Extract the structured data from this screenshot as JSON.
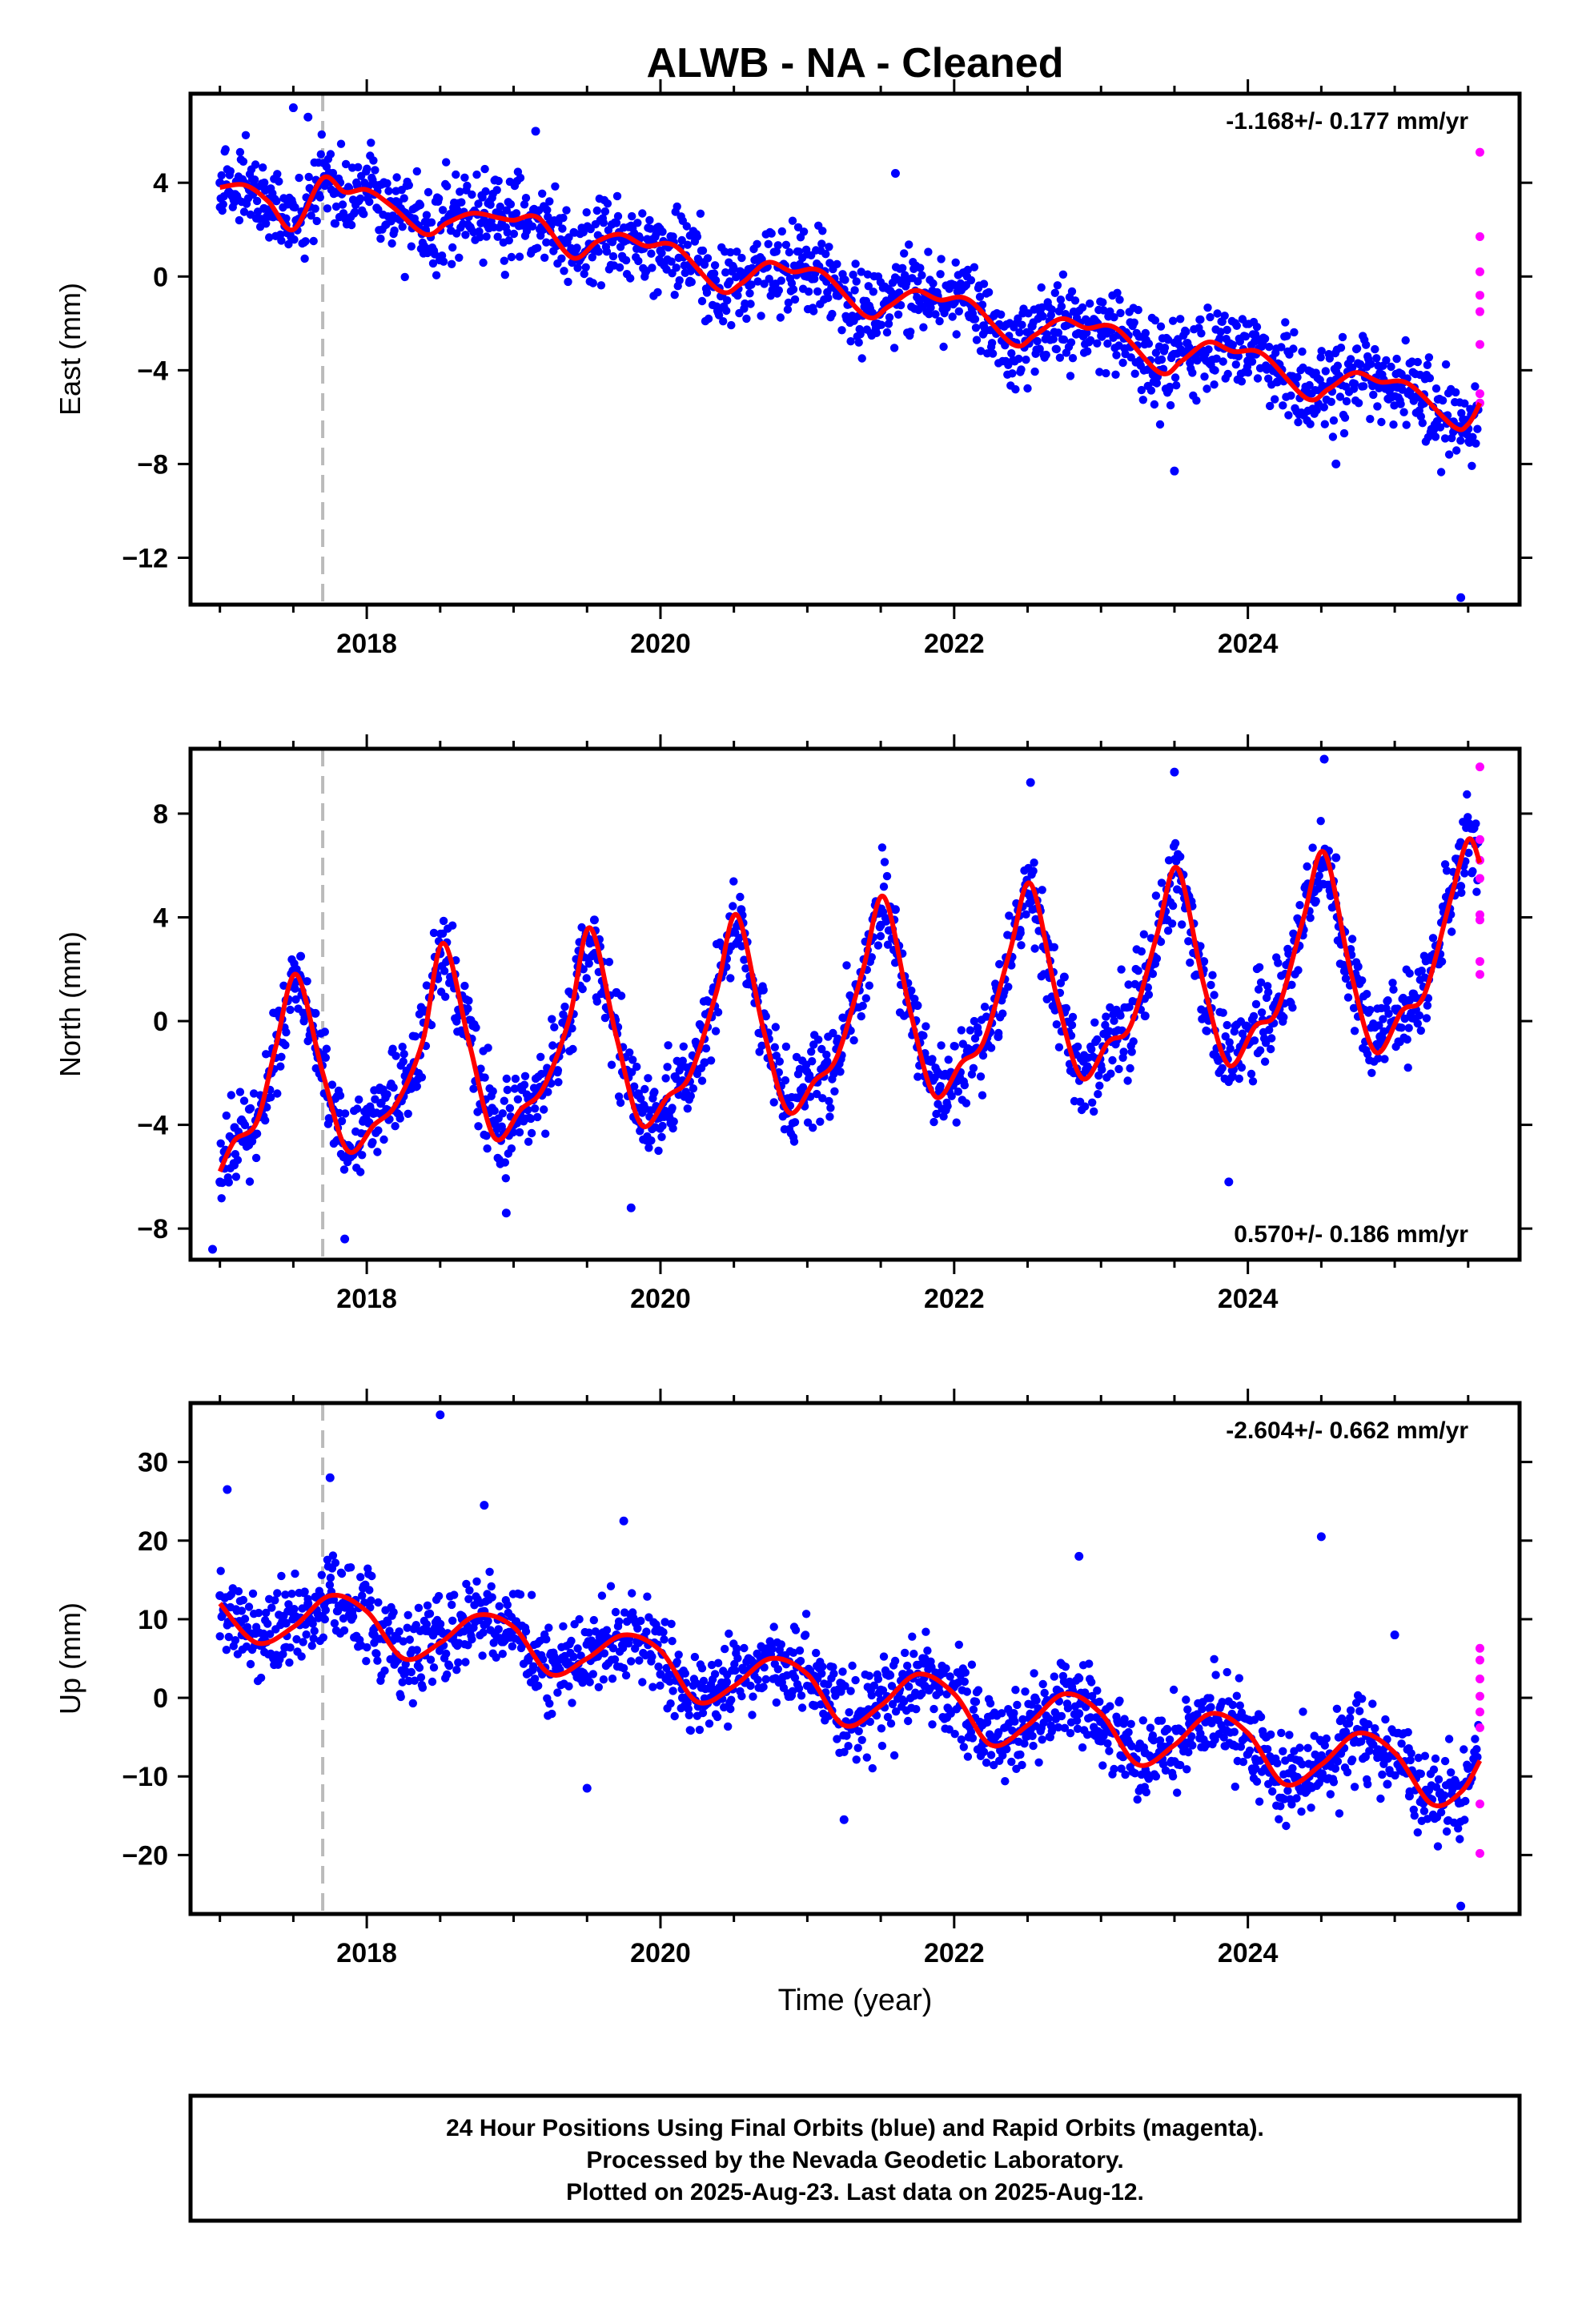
{
  "title": "ALWB  - NA - Cleaned",
  "xlabel": "Time (year)",
  "colors": {
    "final": "#0000ff",
    "rapid": "#ff00ff",
    "model": "#ff0000",
    "event_line": "#bbbbbb"
  },
  "footer": {
    "lines": [
      "24 Hour Positions Using Final Orbits (blue) and Rapid Orbits (magenta).",
      "Processed by the Nevada Geodetic Laboratory.",
      "Plotted on 2025-Aug-23. Last data on 2025-Aug-12."
    ]
  },
  "chart_data": [
    {
      "type": "scatter",
      "component": "east",
      "ylabel": "East (mm)",
      "rate_label": "-1.168+/- 0.177 mm/yr",
      "rate_position": "top-right",
      "xlim": [
        2016.8,
        2025.85
      ],
      "ylim": [
        -14.0,
        7.8
      ],
      "xticks": [
        2018,
        2020,
        2022,
        2024
      ],
      "xtick_labels": [
        "2018",
        "2020",
        "2022",
        "2024"
      ],
      "yticks": [
        -12,
        -8,
        -4,
        0,
        4
      ],
      "ytick_labels": [
        "−12",
        "−8",
        "−4",
        "0",
        "4"
      ],
      "event_line_x": 2017.7,
      "series": [
        {
          "role": "model",
          "x": [
            2017.0,
            2017.17,
            2017.33,
            2017.5,
            2017.7,
            2017.85,
            2018.0,
            2018.17,
            2018.4,
            2018.55,
            2018.72,
            2018.9,
            2019.0,
            2019.17,
            2019.4,
            2019.57,
            2019.73,
            2019.9,
            2020.1,
            2020.4,
            2020.55,
            2020.73,
            2020.9,
            2021.1,
            2021.4,
            2021.55,
            2021.73,
            2021.9,
            2022.1,
            2022.4,
            2022.55,
            2022.73,
            2022.9,
            2023.1,
            2023.4,
            2023.55,
            2023.73,
            2023.9,
            2024.1,
            2024.4,
            2024.55,
            2024.73,
            2024.9,
            2025.1,
            2025.4,
            2025.5,
            2025.58
          ],
          "y": [
            3.8,
            3.9,
            3.2,
            2.0,
            4.2,
            3.6,
            3.7,
            3.0,
            1.8,
            2.3,
            2.7,
            2.5,
            2.4,
            2.5,
            0.8,
            1.5,
            1.8,
            1.3,
            1.3,
            -0.6,
            -0.3,
            0.6,
            0.2,
            0.2,
            -1.7,
            -1.3,
            -0.6,
            -1.0,
            -1.0,
            -2.9,
            -2.5,
            -1.8,
            -2.2,
            -2.2,
            -4.1,
            -3.6,
            -2.8,
            -3.2,
            -3.3,
            -5.2,
            -4.8,
            -4.1,
            -4.5,
            -4.6,
            -6.4,
            -6.3,
            -5.4
          ]
        },
        {
          "role": "final",
          "x": [
            2017.0,
            2017.1,
            2017.2,
            2017.3,
            2017.45,
            2017.55,
            2017.65,
            2017.8,
            2018.0,
            2018.2,
            2018.4,
            2018.6,
            2018.8,
            2019.0,
            2019.2,
            2019.4,
            2019.6,
            2019.8,
            2020.0,
            2020.2,
            2020.4,
            2020.6,
            2020.8,
            2021.0,
            2021.2,
            2021.4,
            2021.6,
            2021.8,
            2022.0,
            2022.2,
            2022.4,
            2022.6,
            2022.8,
            2023.0,
            2023.2,
            2023.4,
            2023.6,
            2023.8,
            2024.0,
            2024.2,
            2024.4,
            2024.6,
            2024.8,
            2025.0,
            2025.2,
            2025.4,
            2025.5,
            2017.5,
            2017.6,
            2019.15,
            2021.6,
            2023.5,
            2024.6,
            2025.45
          ],
          "y": [
            4.0,
            3.5,
            3.7,
            2.9,
            2.2,
            2.5,
            3.5,
            4.0,
            3.6,
            3.2,
            2.0,
            2.6,
            2.7,
            2.3,
            2.1,
            1.0,
            1.6,
            1.7,
            1.1,
            -0.2,
            -0.5,
            0.3,
            0.4,
            0.0,
            -0.8,
            -1.6,
            -1.0,
            -0.7,
            -1.1,
            -2.1,
            -2.8,
            -2.3,
            -2.0,
            -2.3,
            -3.0,
            -4.0,
            -3.1,
            -3.0,
            -3.6,
            -4.5,
            -5.1,
            -4.4,
            -4.3,
            -4.6,
            -5.4,
            -6.2,
            -6.5,
            7.2,
            6.8,
            6.2,
            4.4,
            -8.3,
            -8.0,
            -13.7
          ]
        },
        {
          "role": "rapid",
          "x": [
            2025.58,
            2025.58,
            2025.58,
            2025.58,
            2025.58,
            2025.58,
            2025.58,
            2025.58
          ],
          "y": [
            5.3,
            1.7,
            0.2,
            -0.8,
            -1.5,
            -2.9,
            -5.0,
            -5.4
          ]
        }
      ]
    },
    {
      "type": "scatter",
      "component": "north",
      "ylabel": "North (mm)",
      "rate_label": "0.570+/- 0.186 mm/yr",
      "rate_position": "bottom-right",
      "xlim": [
        2016.8,
        2025.85
      ],
      "ylim": [
        -9.2,
        10.5
      ],
      "xticks": [
        2018,
        2020,
        2022,
        2024
      ],
      "xtick_labels": [
        "2018",
        "2020",
        "2022",
        "2024"
      ],
      "yticks": [
        -8,
        -4,
        0,
        4,
        8
      ],
      "ytick_labels": [
        "−8",
        "−4",
        "0",
        "4",
        "8"
      ],
      "event_line_x": 2017.7,
      "series": [
        {
          "role": "model",
          "x": [
            2017.0,
            2017.1,
            2017.25,
            2017.38,
            2017.52,
            2017.7,
            2017.87,
            2018.05,
            2018.2,
            2018.38,
            2018.52,
            2018.7,
            2018.87,
            2019.05,
            2019.2,
            2019.38,
            2019.52,
            2019.7,
            2019.87,
            2020.05,
            2020.2,
            2020.38,
            2020.52,
            2020.7,
            2020.87,
            2021.05,
            2021.2,
            2021.38,
            2021.52,
            2021.7,
            2021.87,
            2022.05,
            2022.2,
            2022.38,
            2022.52,
            2022.7,
            2022.87,
            2023.05,
            2023.2,
            2023.38,
            2023.52,
            2023.7,
            2023.87,
            2024.05,
            2024.2,
            2024.38,
            2024.52,
            2024.7,
            2024.87,
            2025.05,
            2025.2,
            2025.38,
            2025.5,
            2025.58
          ],
          "y": [
            -5.8,
            -4.6,
            -3.9,
            -1.0,
            1.8,
            -2.0,
            -5.0,
            -4.0,
            -3.2,
            -0.8,
            3.0,
            -0.9,
            -4.5,
            -3.4,
            -2.6,
            0.1,
            3.6,
            -0.6,
            -4.0,
            -2.9,
            -2.1,
            1.1,
            4.1,
            -0.3,
            -3.5,
            -2.3,
            -1.4,
            2.0,
            4.8,
            0.4,
            -2.9,
            -1.6,
            -0.8,
            2.7,
            5.3,
            0.9,
            -2.2,
            -0.8,
            -0.2,
            3.3,
            5.9,
            1.4,
            -1.7,
            -0.2,
            0.4,
            4.0,
            6.5,
            1.9,
            -1.2,
            0.4,
            1.0,
            4.7,
            7.0,
            6.1
          ]
        },
        {
          "role": "final",
          "x": [
            2017.0,
            2017.1,
            2017.2,
            2017.35,
            2017.45,
            2017.55,
            2017.65,
            2017.8,
            2017.95,
            2018.1,
            2018.25,
            2018.4,
            2018.5,
            2018.6,
            2018.8,
            2018.95,
            2019.1,
            2019.3,
            2019.45,
            2019.55,
            2019.7,
            2019.85,
            2020.0,
            2020.15,
            2020.3,
            2020.45,
            2020.55,
            2020.7,
            2020.85,
            2021.0,
            2021.2,
            2021.35,
            2021.5,
            2021.6,
            2021.75,
            2021.9,
            2022.1,
            2022.3,
            2022.45,
            2022.55,
            2022.75,
            2022.9,
            2023.1,
            2023.3,
            2023.45,
            2023.55,
            2023.7,
            2023.85,
            2024.0,
            2024.2,
            2024.35,
            2024.5,
            2024.6,
            2024.75,
            2024.9,
            2025.1,
            2025.3,
            2025.45,
            2025.55,
            2016.95,
            2017.85,
            2018.95,
            2019.8,
            2022.52,
            2023.5,
            2024.52,
            2023.87
          ],
          "y": [
            -6.2,
            -4.1,
            -3.4,
            -2.0,
            0.8,
            2.5,
            0.3,
            -4.6,
            -4.8,
            -3.6,
            -2.9,
            0.4,
            2.6,
            1.8,
            -3.4,
            -4.3,
            -3.0,
            -1.9,
            2.1,
            3.9,
            1.1,
            -2.8,
            -3.7,
            -2.3,
            -1.6,
            2.4,
            4.3,
            1.2,
            -3.2,
            -2.9,
            -1.8,
            1.4,
            3.7,
            4.3,
            0.6,
            -2.6,
            -1.3,
            -0.6,
            3.4,
            5.0,
            1.7,
            -1.9,
            -0.7,
            0.2,
            3.9,
            5.6,
            2.3,
            -1.3,
            -0.9,
            0.8,
            2.9,
            5.9,
            6.3,
            2.1,
            -0.6,
            0.8,
            2.2,
            5.2,
            6.8,
            -8.8,
            -8.4,
            -7.4,
            -7.2,
            9.2,
            9.6,
            10.1,
            -6.2
          ]
        },
        {
          "role": "rapid",
          "x": [
            2025.58,
            2025.58,
            2025.58,
            2025.58,
            2025.58,
            2025.58,
            2025.58,
            2025.58
          ],
          "y": [
            9.8,
            7.0,
            6.2,
            5.5,
            4.1,
            3.9,
            2.3,
            1.8
          ]
        }
      ]
    },
    {
      "type": "scatter",
      "component": "up",
      "ylabel": "Up (mm)",
      "rate_label": "-2.604+/- 0.662 mm/yr",
      "rate_position": "top-right",
      "xlim": [
        2016.8,
        2025.85
      ],
      "ylim": [
        -27.5,
        37.5
      ],
      "xticks": [
        2018,
        2020,
        2022,
        2024
      ],
      "xtick_labels": [
        "2018",
        "2020",
        "2022",
        "2024"
      ],
      "yticks": [
        -20,
        -10,
        0,
        10,
        20,
        30
      ],
      "ytick_labels": [
        "−20",
        "−10",
        "0",
        "10",
        "20",
        "30"
      ],
      "event_line_x": 2017.7,
      "series": [
        {
          "role": "model",
          "x": [
            2017.0,
            2017.25,
            2017.5,
            2017.75,
            2018.0,
            2018.25,
            2018.5,
            2018.75,
            2019.0,
            2019.25,
            2019.5,
            2019.75,
            2020.0,
            2020.25,
            2020.5,
            2020.75,
            2021.0,
            2021.25,
            2021.5,
            2021.75,
            2022.0,
            2022.25,
            2022.5,
            2022.75,
            2023.0,
            2023.25,
            2023.5,
            2023.75,
            2024.0,
            2024.25,
            2024.5,
            2024.75,
            2025.0,
            2025.25,
            2025.45,
            2025.58
          ],
          "y": [
            12.0,
            7.0,
            9.0,
            13.0,
            11.0,
            5.0,
            7.0,
            10.5,
            9.0,
            3.0,
            5.0,
            8.0,
            6.0,
            -0.5,
            1.5,
            5.0,
            3.0,
            -3.5,
            -1.0,
            3.0,
            0.5,
            -6.0,
            -3.5,
            0.5,
            -2.0,
            -8.5,
            -6.0,
            -2.0,
            -4.5,
            -11.0,
            -8.5,
            -4.5,
            -7.0,
            -13.5,
            -12.0,
            -8.0
          ]
        },
        {
          "role": "final",
          "x": [
            2017.0,
            2017.15,
            2017.3,
            2017.45,
            2017.6,
            2017.75,
            2017.9,
            2018.05,
            2018.2,
            2018.35,
            2018.5,
            2018.65,
            2018.8,
            2018.95,
            2019.1,
            2019.25,
            2019.4,
            2019.55,
            2019.7,
            2019.85,
            2020.0,
            2020.15,
            2020.3,
            2020.45,
            2020.6,
            2020.75,
            2020.9,
            2021.05,
            2021.2,
            2021.35,
            2021.5,
            2021.65,
            2021.8,
            2021.95,
            2022.1,
            2022.25,
            2022.4,
            2022.55,
            2022.7,
            2022.85,
            2023.0,
            2023.15,
            2023.3,
            2023.45,
            2023.6,
            2023.75,
            2023.9,
            2024.05,
            2024.2,
            2024.35,
            2024.5,
            2024.65,
            2024.8,
            2024.95,
            2025.1,
            2025.25,
            2025.4,
            2025.5,
            2018.5,
            2017.05,
            2017.75,
            2018.8,
            2019.75,
            2022.85,
            2024.5,
            2025.0,
            2025.45,
            2019.5,
            2021.25
          ],
          "y": [
            13.0,
            8.0,
            7.5,
            9.5,
            12.0,
            12.5,
            11.0,
            8.0,
            5.5,
            5.0,
            7.0,
            10.0,
            11.0,
            8.0,
            5.0,
            3.0,
            4.0,
            6.0,
            8.0,
            7.0,
            3.0,
            0.0,
            -1.0,
            2.0,
            5.0,
            5.5,
            3.0,
            -1.0,
            -3.0,
            -2.0,
            1.0,
            3.0,
            1.5,
            -2.5,
            -5.0,
            -5.5,
            -2.5,
            0.0,
            1.0,
            -2.0,
            -5.5,
            -7.5,
            -7.0,
            -4.0,
            -2.5,
            -3.0,
            -6.0,
            -9.0,
            -10.5,
            -8.0,
            -5.5,
            -5.0,
            -7.5,
            -11.0,
            -12.5,
            -13.0,
            -11.0,
            -9.0,
            36.0,
            26.5,
            28.0,
            24.5,
            22.5,
            18.0,
            20.5,
            8.0,
            -26.5,
            -11.5,
            -15.5
          ]
        },
        {
          "role": "rapid",
          "x": [
            2025.58,
            2025.58,
            2025.58,
            2025.58,
            2025.58,
            2025.58,
            2025.58,
            2025.58
          ],
          "y": [
            6.3,
            4.8,
            2.4,
            0.2,
            -1.8,
            -3.8,
            -13.5,
            -19.8
          ]
        }
      ]
    }
  ]
}
